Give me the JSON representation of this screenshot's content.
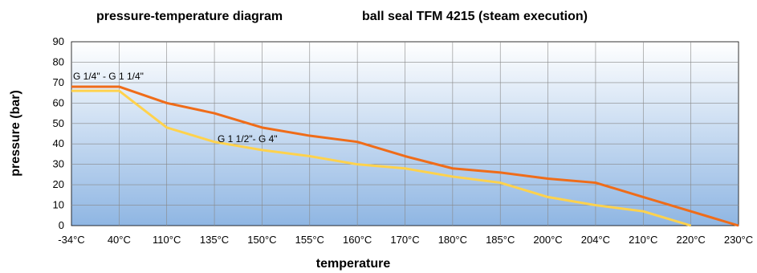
{
  "chart_data": {
    "type": "line",
    "title_left": "pressure-temperature diagram",
    "title_right": "ball seal TFM 4215  (steam execution)",
    "xlabel": "temperature",
    "ylabel": "pressure  (bar)",
    "categories": [
      "-34°C",
      "40°C",
      "110°C",
      "135°C",
      "150°C",
      "155°C",
      "160°C",
      "170°C",
      "180°C",
      "185°C",
      "200°C",
      "204°C",
      "210°C",
      "220°C",
      "230°C"
    ],
    "ylim": [
      0,
      90
    ],
    "yticks": [
      "0",
      "10",
      "20",
      "30",
      "40",
      "50",
      "60",
      "70",
      "80",
      "90"
    ],
    "grid": true,
    "background": "gradient light blue to white",
    "series": [
      {
        "name": "G 1/4\" - G 1 1/4\"",
        "color": "#ef6c19",
        "values": [
          68,
          68,
          60,
          55,
          48,
          44,
          41,
          34,
          28,
          26,
          23,
          21,
          14,
          7,
          0
        ]
      },
      {
        "name": "G 1 1/2\"- G 4\"",
        "color": "#ffd24d",
        "values": [
          66,
          66,
          48,
          41,
          37,
          34,
          30,
          28,
          24,
          21,
          14,
          10,
          7,
          0,
          null
        ]
      }
    ]
  }
}
